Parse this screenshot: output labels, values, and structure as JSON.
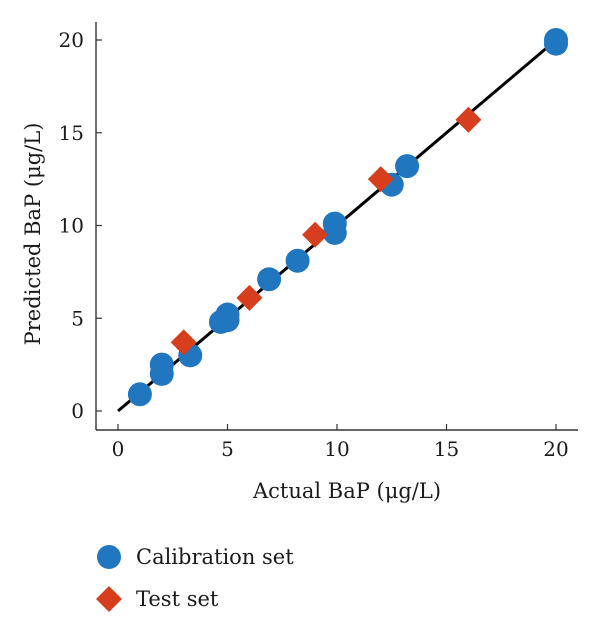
{
  "chart_data": {
    "type": "scatter",
    "xlabel": "Actual BaP (μg/L)",
    "ylabel": "Predicted BaP (μg/L)",
    "xlim": [
      0,
      20
    ],
    "ylim": [
      0,
      20
    ],
    "xticks": [
      0,
      5,
      10,
      15,
      20
    ],
    "yticks": [
      0,
      5,
      10,
      15,
      20
    ],
    "grid": false,
    "legend_position": "bottom-left",
    "fit_line": {
      "x": [
        0,
        20
      ],
      "y": [
        0,
        20
      ]
    },
    "series": [
      {
        "name": "Calibration set",
        "marker": "circle",
        "color": "#2176c0",
        "points": [
          [
            1.0,
            0.9
          ],
          [
            2.0,
            2.0
          ],
          [
            2.0,
            2.5
          ],
          [
            3.3,
            3.0
          ],
          [
            4.7,
            4.8
          ],
          [
            5.0,
            4.9
          ],
          [
            5.0,
            5.2
          ],
          [
            6.9,
            7.1
          ],
          [
            8.2,
            8.1
          ],
          [
            9.9,
            9.6
          ],
          [
            9.9,
            10.1
          ],
          [
            12.5,
            12.2
          ],
          [
            13.2,
            13.2
          ],
          [
            20.0,
            19.8
          ],
          [
            20.0,
            20.0
          ]
        ]
      },
      {
        "name": "Test set",
        "marker": "diamond",
        "color": "#d63e1e",
        "points": [
          [
            3.0,
            3.7
          ],
          [
            6.0,
            6.1
          ],
          [
            9.0,
            9.5
          ],
          [
            12.0,
            12.5
          ],
          [
            16.0,
            15.7
          ]
        ]
      }
    ]
  }
}
